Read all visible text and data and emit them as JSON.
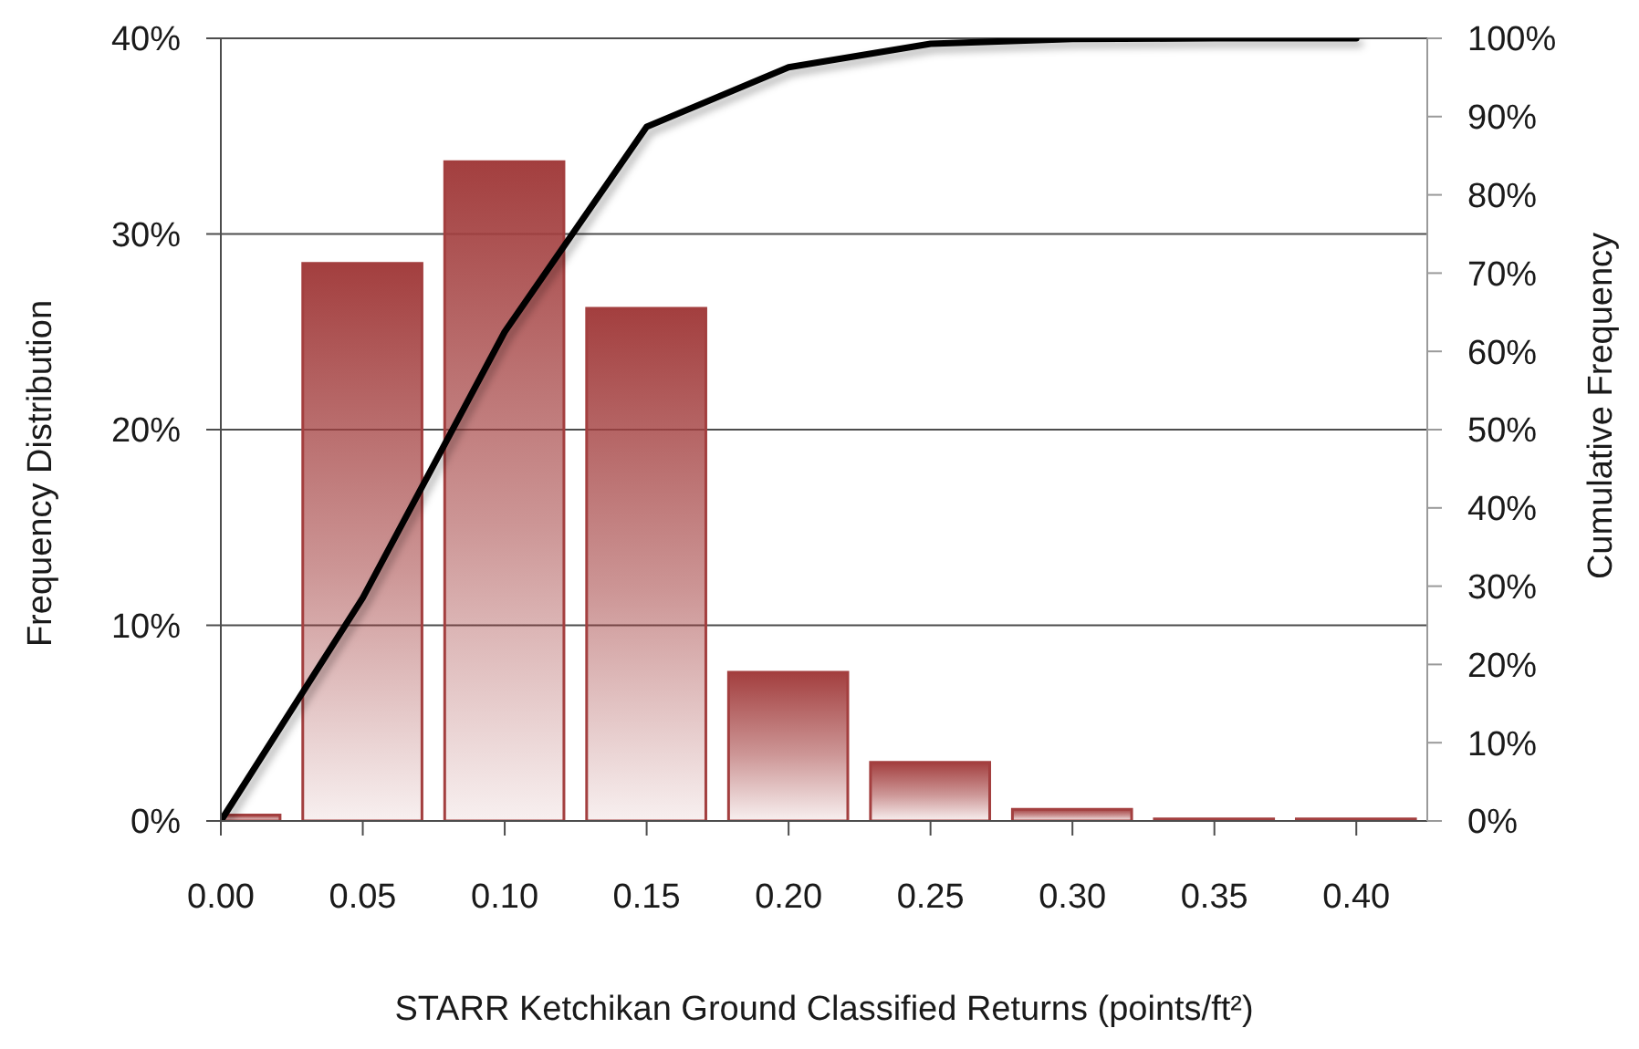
{
  "chart_data": {
    "type": "bar",
    "xlabel": "STARR Ketchikan Ground Classified Returns (points/ft²)",
    "ylabel": "Frequency Distribution",
    "y2label": "Cumulative Frequency",
    "x": [
      0,
      0.05,
      0.1,
      0.15,
      0.2,
      0.25,
      0.3,
      0.35,
      0.4
    ],
    "xlim": [
      0,
      0.425
    ],
    "xticks": [
      {
        "value": 0,
        "label": "0.00"
      },
      0.05,
      {
        "value": 0.1,
        "label": "0.10"
      },
      0.15,
      {
        "value": 0.2,
        "label": "0.20"
      },
      0.25,
      {
        "value": 0.3,
        "label": "0.30"
      },
      0.35,
      {
        "value": 0.4,
        "label": "0.40"
      }
    ],
    "ylim": [
      0,
      40
    ],
    "yticks": [
      {
        "value": 0,
        "label": "0%"
      },
      {
        "value": 10,
        "label": "10%"
      },
      {
        "value": 20,
        "label": "20%"
      },
      {
        "value": 30,
        "label": "30%"
      },
      {
        "value": 40,
        "label": "40%"
      }
    ],
    "y2lim": [
      0,
      100
    ],
    "y2ticks": [
      {
        "value": 0,
        "label": "0%"
      },
      {
        "value": 10,
        "label": "10%"
      },
      {
        "value": 20,
        "label": "20%"
      },
      {
        "value": 30,
        "label": "30%"
      },
      {
        "value": 40,
        "label": "40%"
      },
      {
        "value": 50,
        "label": "50%"
      },
      {
        "value": 60,
        "label": "60%"
      },
      {
        "value": 70,
        "label": "70%"
      },
      {
        "value": 80,
        "label": "80%"
      },
      {
        "value": 90,
        "label": "90%"
      },
      {
        "value": 100,
        "label": "100%"
      }
    ],
    "series": [
      {
        "color": "#a33f3f",
        "values": [
          0.3,
          28.5,
          33.7,
          26.2,
          7.6,
          3.0,
          0.6,
          0.1,
          0.1
        ]
      },
      {
        "type": "line",
        "axis": "y2",
        "color": "#000000",
        "values": [
          0,
          28.5,
          62.5,
          88.7,
          96.3,
          99.3,
          99.9,
          100,
          100
        ]
      }
    ],
    "grid": "y",
    "line_style": "solid"
  }
}
